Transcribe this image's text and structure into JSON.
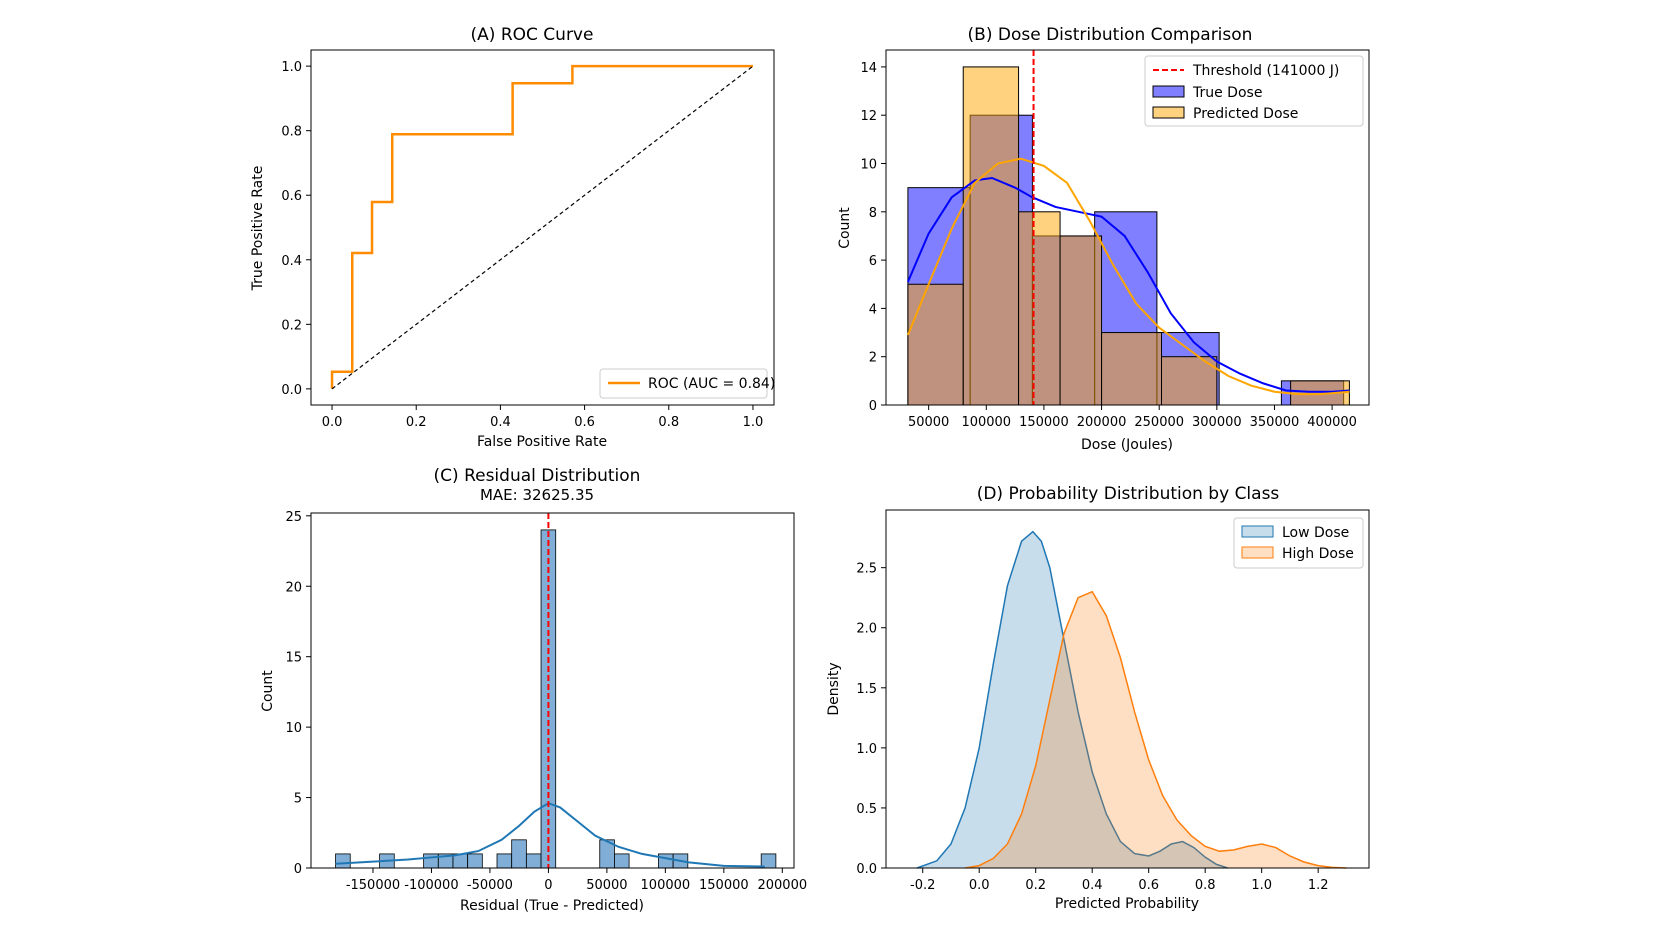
{
  "chart_data": [
    {
      "id": "A",
      "type": "line",
      "title": "(A) ROC Curve",
      "xlabel": "False Positive Rate",
      "ylabel": "True Positive Rate",
      "xlim": [
        -0.05,
        1.05
      ],
      "ylim": [
        -0.05,
        1.05
      ],
      "xticks": [
        0.0,
        0.2,
        0.4,
        0.6,
        0.8,
        1.0
      ],
      "xtick_labels": [
        "0.0",
        "0.2",
        "0.4",
        "0.6",
        "0.8",
        "1.0"
      ],
      "yticks": [
        0.0,
        0.2,
        0.4,
        0.6,
        0.8,
        1.0
      ],
      "ytick_labels": [
        "0.0",
        "0.2",
        "0.4",
        "0.6",
        "0.8",
        "1.0"
      ],
      "grid": false,
      "legend": {
        "position": "lower-right",
        "entries": [
          "ROC (AUC = 0.84)"
        ]
      },
      "series": [
        {
          "name": "ROC (AUC = 0.84)",
          "color": "#ff8c00",
          "style": "solid",
          "x": [
            0.0,
            0.0,
            0.048,
            0.048,
            0.095,
            0.095,
            0.143,
            0.143,
            0.429,
            0.429,
            0.571,
            0.571,
            1.0
          ],
          "y": [
            0.0,
            0.053,
            0.053,
            0.421,
            0.421,
            0.579,
            0.579,
            0.789,
            0.789,
            0.947,
            0.947,
            1.0,
            1.0
          ]
        },
        {
          "name": "chance",
          "color": "#000000",
          "style": "dashed",
          "x": [
            0.0,
            1.0
          ],
          "y": [
            0.0,
            1.0
          ]
        }
      ]
    },
    {
      "id": "B",
      "type": "bar",
      "title": "(B) Dose Distribution Comparison",
      "xlabel": "Dose (Joules)",
      "ylabel": "Count",
      "xlim": [
        13000,
        432000
      ],
      "ylim": [
        0,
        14.7
      ],
      "xticks": [
        50000,
        100000,
        150000,
        200000,
        250000,
        300000,
        350000,
        400000
      ],
      "xtick_labels": [
        "50000",
        "100000",
        "150000",
        "200000",
        "250000",
        "300000",
        "350000",
        "400000"
      ],
      "yticks": [
        0,
        2,
        4,
        6,
        8,
        10,
        12,
        14
      ],
      "ytick_labels": [
        "0",
        "2",
        "4",
        "6",
        "8",
        "10",
        "12",
        "14"
      ],
      "grid": false,
      "legend": {
        "position": "top-right",
        "entries": [
          "Threshold (141000 J)",
          "True Dose",
          "Predicted Dose"
        ]
      },
      "threshold": {
        "label": "Threshold (141000 J)",
        "value": 141000,
        "color": "#ff0000"
      },
      "histograms": [
        {
          "name": "True Dose",
          "color": "#0000ff",
          "edges": [
            32000,
            86000,
            140000,
            194000,
            248000,
            302000,
            356000,
            410000
          ],
          "counts": [
            9,
            12,
            7,
            8,
            3,
            0,
            1
          ]
        },
        {
          "name": "Predicted Dose",
          "color": "#ffa500",
          "edges": [
            32000,
            80000,
            128000,
            164000,
            200000,
            252000,
            300000,
            348000,
            364000,
            415000
          ],
          "counts": [
            5,
            14,
            8,
            7,
            3,
            2,
            0,
            0,
            1
          ]
        }
      ],
      "kde": [
        {
          "name": "True Dose",
          "color": "#0000ff",
          "x": [
            32000,
            50000,
            70000,
            90000,
            105000,
            125000,
            140000,
            160000,
            180000,
            200000,
            220000,
            240000,
            260000,
            280000,
            300000,
            320000,
            340000,
            360000,
            380000,
            400000,
            415000
          ],
          "y": [
            5.1,
            7.1,
            8.6,
            9.3,
            9.4,
            9.0,
            8.6,
            8.2,
            8.0,
            7.8,
            7.0,
            5.5,
            3.8,
            2.6,
            1.8,
            1.3,
            0.9,
            0.6,
            0.55,
            0.55,
            0.6
          ]
        },
        {
          "name": "Predicted Dose",
          "color": "#ffa500",
          "x": [
            32000,
            50000,
            70000,
            90000,
            110000,
            130000,
            150000,
            170000,
            190000,
            210000,
            230000,
            250000,
            270000,
            290000,
            310000,
            330000,
            350000,
            370000,
            390000,
            415000
          ],
          "y": [
            2.9,
            5.0,
            7.3,
            9.2,
            10.0,
            10.2,
            9.9,
            9.2,
            7.6,
            5.8,
            4.2,
            3.2,
            2.5,
            1.8,
            1.2,
            0.8,
            0.55,
            0.45,
            0.45,
            0.55
          ]
        }
      ]
    },
    {
      "id": "C",
      "type": "bar",
      "title": "(C) Residual Distribution",
      "subtitle": "MAE: 32625.35",
      "xlabel": "Residual (True - Predicted)",
      "ylabel": "Count",
      "xlim": [
        -203000,
        210000
      ],
      "ylim": [
        0,
        25.2
      ],
      "xticks": [
        -150000,
        -100000,
        -50000,
        0,
        50000,
        100000,
        150000,
        200000
      ],
      "xtick_labels": [
        "-150000",
        "-100000",
        "-50000",
        "0",
        "50000",
        "100000",
        "150000",
        "200000"
      ],
      "yticks": [
        0,
        5,
        10,
        15,
        20,
        25
      ],
      "ytick_labels": [
        "0",
        "5",
        "10",
        "15",
        "20",
        "25"
      ],
      "grid": false,
      "reference_line": {
        "value": 0,
        "color": "#ff0000"
      },
      "histogram": {
        "color": "#6aa0cf",
        "bin_start": -182000,
        "bin_width": 12550,
        "counts": [
          1,
          0,
          0,
          1,
          0,
          0,
          1,
          1,
          1,
          1,
          0,
          1,
          2,
          1,
          24,
          0,
          0,
          0,
          2,
          1,
          0,
          0,
          1,
          1,
          0,
          0,
          0,
          0,
          0,
          1
        ]
      },
      "kde": {
        "color": "#1f77b4",
        "x": [
          -182000,
          -150000,
          -120000,
          -100000,
          -80000,
          -60000,
          -40000,
          -25000,
          -12000,
          0,
          10000,
          25000,
          40000,
          60000,
          80000,
          100000,
          120000,
          150000,
          185000
        ],
        "y": [
          0.3,
          0.45,
          0.6,
          0.75,
          0.9,
          1.2,
          2.0,
          3.0,
          4.0,
          4.6,
          4.3,
          3.3,
          2.3,
          1.5,
          1.0,
          0.7,
          0.4,
          0.15,
          0.1
        ]
      }
    },
    {
      "id": "D",
      "type": "area",
      "title": "(D) Probability Distribution by Class",
      "xlabel": "Predicted Probability",
      "ylabel": "Density",
      "xlim": [
        -0.33,
        1.38
      ],
      "ylim": [
        0,
        2.98
      ],
      "xticks": [
        -0.2,
        0.0,
        0.2,
        0.4,
        0.6,
        0.8,
        1.0,
        1.2
      ],
      "xtick_labels": [
        "-0.2",
        "0.0",
        "0.2",
        "0.4",
        "0.6",
        "0.8",
        "1.0",
        "1.2"
      ],
      "yticks": [
        0.0,
        0.5,
        1.0,
        1.5,
        2.0,
        2.5
      ],
      "ytick_labels": [
        "0.0",
        "0.5",
        "1.0",
        "1.5",
        "2.0",
        "2.5"
      ],
      "grid": false,
      "legend": {
        "position": "top-right",
        "entries": [
          "Low Dose",
          "High Dose"
        ]
      },
      "series": [
        {
          "name": "Low Dose",
          "color": "#1f77b4",
          "x": [
            -0.22,
            -0.15,
            -0.1,
            -0.05,
            0.0,
            0.05,
            0.1,
            0.15,
            0.19,
            0.22,
            0.25,
            0.3,
            0.35,
            0.4,
            0.45,
            0.5,
            0.55,
            0.6,
            0.64,
            0.68,
            0.72,
            0.76,
            0.8,
            0.84,
            0.88
          ],
          "y": [
            0.0,
            0.06,
            0.2,
            0.5,
            1.0,
            1.7,
            2.35,
            2.72,
            2.8,
            2.72,
            2.5,
            1.9,
            1.3,
            0.8,
            0.45,
            0.22,
            0.12,
            0.1,
            0.14,
            0.2,
            0.22,
            0.17,
            0.09,
            0.03,
            0.0
          ]
        },
        {
          "name": "High Dose",
          "color": "#ff7f0e",
          "x": [
            -0.05,
            0.0,
            0.05,
            0.1,
            0.15,
            0.2,
            0.25,
            0.3,
            0.35,
            0.4,
            0.45,
            0.5,
            0.55,
            0.6,
            0.65,
            0.7,
            0.75,
            0.8,
            0.85,
            0.9,
            0.95,
            1.0,
            1.05,
            1.1,
            1.15,
            1.2,
            1.25,
            1.3
          ],
          "y": [
            0.0,
            0.02,
            0.08,
            0.2,
            0.45,
            0.85,
            1.4,
            1.95,
            2.25,
            2.3,
            2.1,
            1.75,
            1.3,
            0.9,
            0.6,
            0.4,
            0.27,
            0.18,
            0.14,
            0.15,
            0.18,
            0.2,
            0.17,
            0.1,
            0.05,
            0.02,
            0.005,
            0.0
          ]
        }
      ]
    }
  ]
}
